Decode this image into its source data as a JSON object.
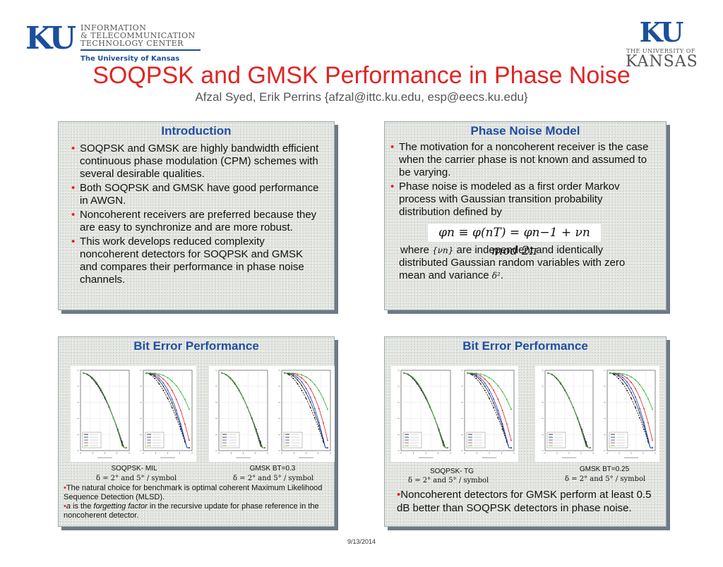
{
  "header": {
    "left_logo": {
      "ku": "KU",
      "lines": [
        "INFORMATION",
        "& TELECOMMUNICATION",
        "TECHNOLOGY CENTER"
      ],
      "university": "The University of Kansas"
    },
    "right_logo": {
      "ku": "KU",
      "small": "THE UNIVERSITY OF",
      "kansas": "KANSAS"
    },
    "title": "SOQPSK and GMSK Performance in Phase Noise",
    "authors": "Afzal Syed, Erik Perrins {afzal@ittc.ku.edu, esp@eecs.ku.edu}"
  },
  "colors": {
    "title": "#e02424",
    "panel_title": "#1f4ea6",
    "ku_blue": "#1b4f9c",
    "bullet": "#e02424"
  },
  "introduction": {
    "title": "Introduction",
    "bullets": [
      "SOQPSK and GMSK are highly bandwidth efficient continuous phase modulation (CPM) schemes with several desirable qualities.",
      "Both SOQPSK and GMSK have good performance in AWGN.",
      "Noncoherent receivers are preferred because they are easy to synchronize and are more robust.",
      "This work develops reduced complexity noncoherent detectors for SOQPSK and GMSK and compares their performance in phase noise channels."
    ]
  },
  "phase_noise": {
    "title": "Phase Noise Model",
    "bullets": [
      "The motivation for a noncoherent receiver is the case when the carrier phase is not known and assumed to be varying.",
      "Phase noise is modeled as a first order Markov process with Gaussian transition probability distribution defined by"
    ],
    "equation": "φn ≡ φ(nT) = φn−1 + νn mod 2π",
    "where_pre": "where",
    "nu_symbol": "{νn}",
    "where_post": "are independent and identically distributed Gaussian random variables with zero mean and variance",
    "delta_sq": "δ²",
    "end": "."
  },
  "ber_left": {
    "title": "Bit Error Performance",
    "caption_a": "SOQPSK- MIL",
    "caption_b": "GMSK BT=0.3",
    "math_a": "δ = 2° and 5° / symbol",
    "math_b": "δ = 2° and 5° / symbol",
    "note_line1": "The natural choice for benchmark is optimal coherent Maximum Likelihood Sequence Detection (MLSD).",
    "note_a": "a",
    "note_is_the": "is the",
    "note_ff": "forgetting factor",
    "note_rest": "in the recursive update for phase reference in the noncoherent detector.",
    "bullet": "•"
  },
  "ber_right": {
    "title": "Bit Error Performance",
    "caption_a": "SOQPSK- TG",
    "caption_b": "GMSK BT=0.25",
    "math_a": "δ = 2° and 5° / symbol",
    "math_b": "δ = 2° and 5° / symbol",
    "note": "Noncoherent detectors for GMSK perform at least 0.5 dB better than SOQPSK detectors in phase noise.",
    "bullet": "•"
  },
  "date": "9/13/2014"
}
